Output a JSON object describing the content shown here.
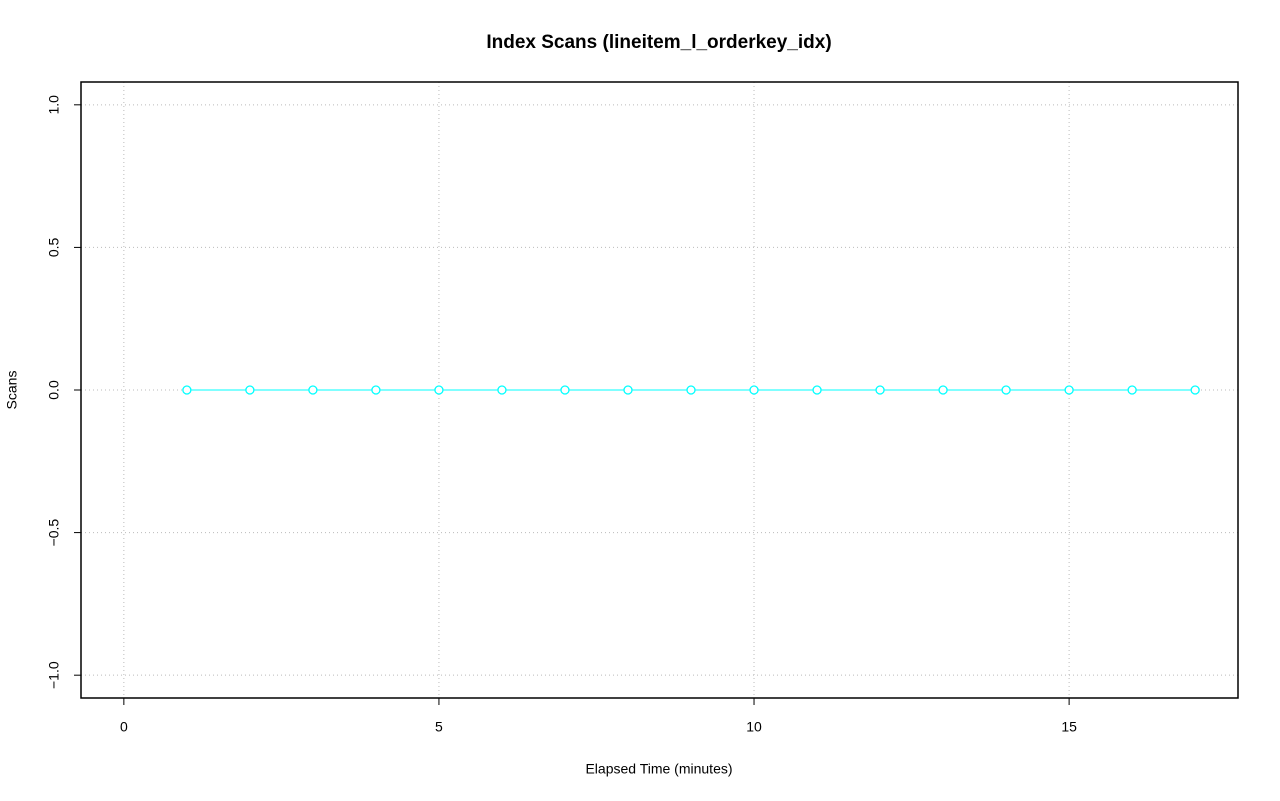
{
  "chart_data": {
    "type": "line",
    "title": "Index Scans (lineitem_l_orderkey_idx)",
    "x_label": "Elapsed Time (minutes)",
    "y_label": "Scans",
    "x": [
      1,
      2,
      3,
      4,
      5,
      6,
      7,
      8,
      9,
      10,
      11,
      12,
      13,
      14,
      15,
      16,
      17
    ],
    "values": [
      0,
      0,
      0,
      0,
      0,
      0,
      0,
      0,
      0,
      0,
      0,
      0,
      0,
      0,
      0,
      0,
      0
    ],
    "color": "#00ffff",
    "marker": "open-circle",
    "xlim": [
      -0.68,
      17.68
    ],
    "xticks": [
      0,
      5,
      10,
      15
    ],
    "ylim": [
      -1.08,
      1.08
    ],
    "yticks": [
      {
        "value": -1,
        "label": "−1.0"
      },
      {
        "value": -0.5,
        "label": "−0.5"
      },
      {
        "value": 0,
        "label": "0.0"
      },
      {
        "value": 0.5,
        "label": "0.5"
      },
      {
        "value": 1,
        "label": "1.0"
      }
    ],
    "grid": true
  }
}
